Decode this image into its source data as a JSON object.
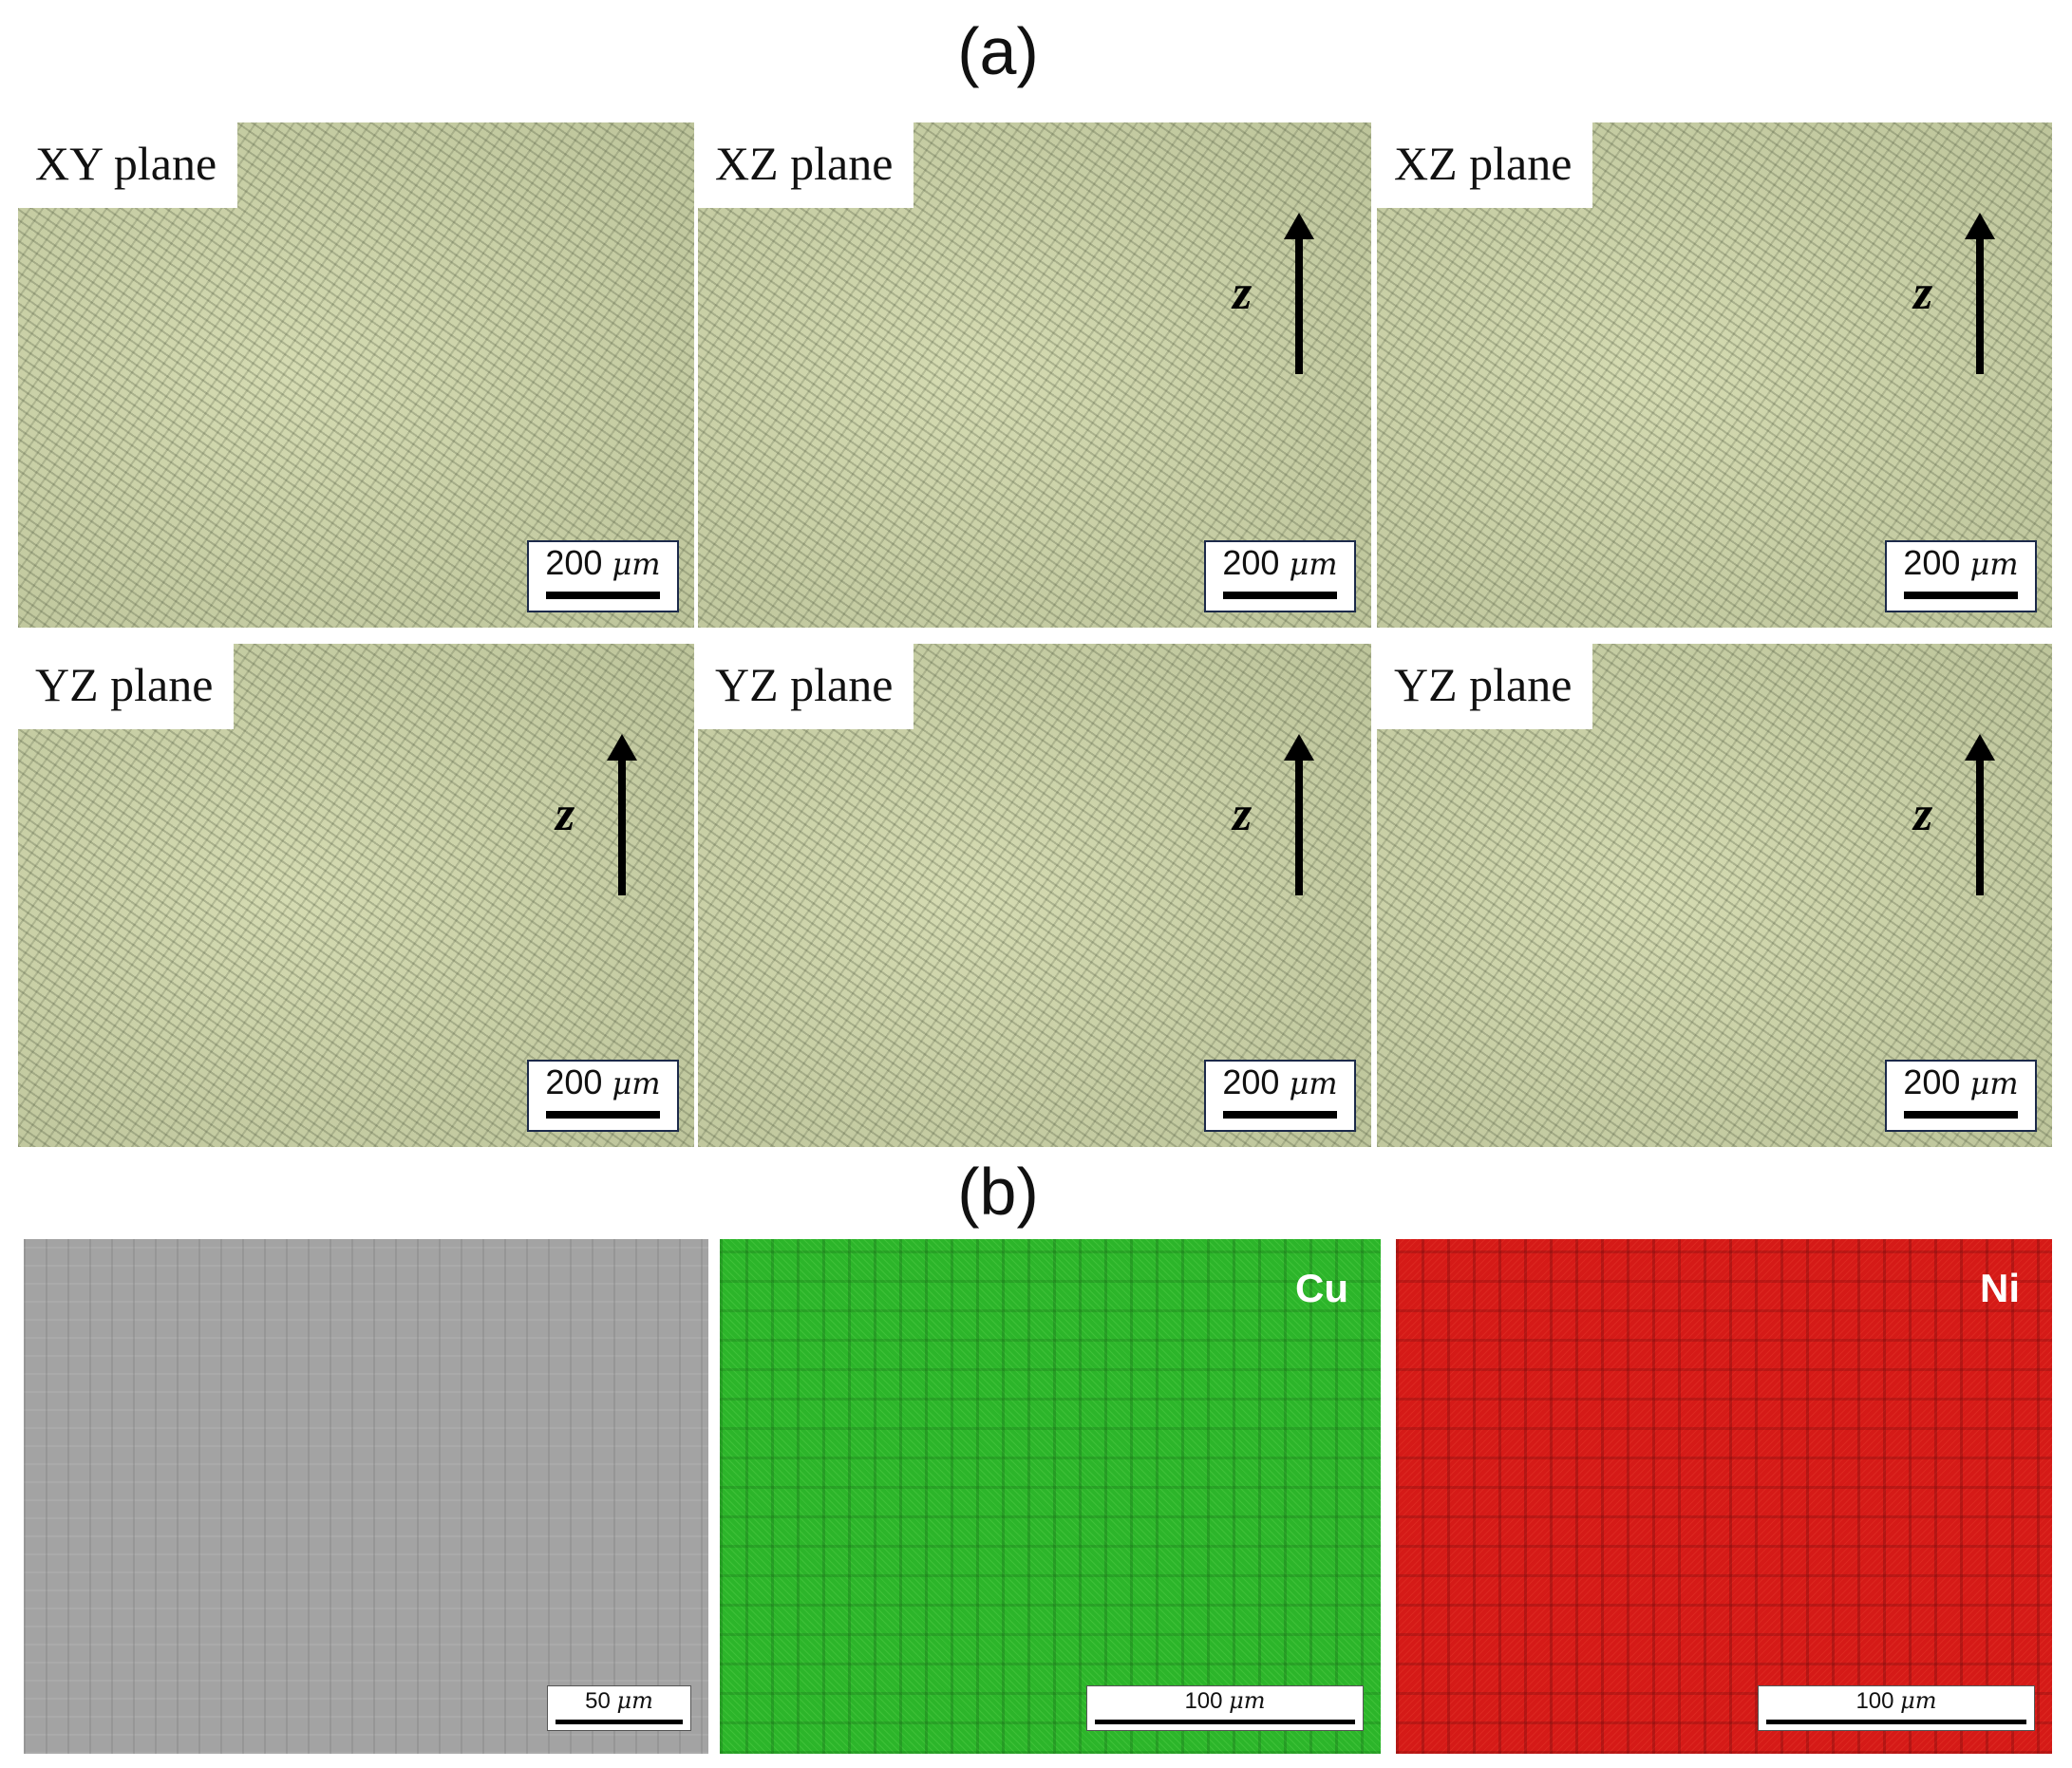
{
  "figure": {
    "a": {
      "label": "(a)",
      "images": [
        {
          "plane": "XY plane",
          "scale": {
            "value": "200",
            "unit": "μm"
          }
        },
        {
          "plane": "XZ plane",
          "axis": "z",
          "scale": {
            "value": "200",
            "unit": "μm"
          }
        },
        {
          "plane": "XZ plane",
          "axis": "z",
          "scale": {
            "value": "200",
            "unit": "μm"
          }
        },
        {
          "plane": "YZ plane",
          "axis": "z",
          "scale": {
            "value": "200",
            "unit": "μm"
          }
        },
        {
          "plane": "YZ plane",
          "axis": "z",
          "scale": {
            "value": "200",
            "unit": "μm"
          }
        },
        {
          "plane": "YZ plane",
          "axis": "z",
          "scale": {
            "value": "200",
            "unit": "μm"
          }
        }
      ]
    },
    "b": {
      "label": "(b)",
      "images": [
        {
          "scale": {
            "value": "50",
            "unit": "μm"
          }
        },
        {
          "element": "Cu",
          "scale": {
            "value": "100",
            "unit": "μm"
          }
        },
        {
          "element": "Ni",
          "scale": {
            "value": "100",
            "unit": "μm"
          }
        }
      ]
    }
  }
}
